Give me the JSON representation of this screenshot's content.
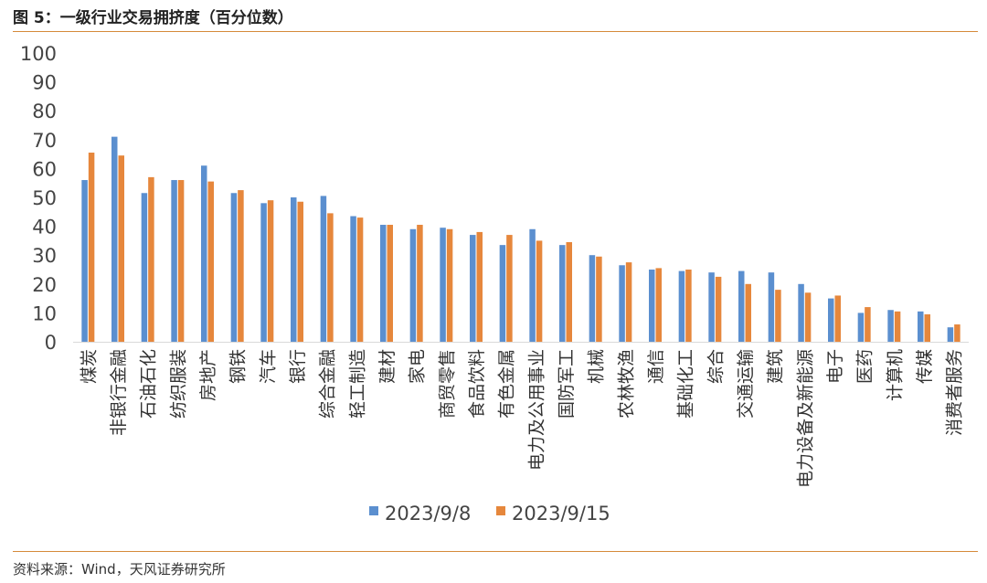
{
  "figure_title": "图 5：一级行业交易拥挤度（百分位数）",
  "source_note": "资料来源：Wind，天风证券研究所",
  "chart_data": {
    "type": "bar",
    "title": "",
    "xlabel": "",
    "ylabel": "",
    "ylim": [
      0,
      100
    ],
    "yticks": [
      0,
      10,
      20,
      30,
      40,
      50,
      60,
      70,
      80,
      90,
      100
    ],
    "grid": false,
    "legend_position": "bottom",
    "categories": [
      "煤炭",
      "非银行金融",
      "石油石化",
      "纺织服装",
      "房地产",
      "钢铁",
      "汽车",
      "银行",
      "综合金融",
      "轻工制造",
      "建材",
      "家电",
      "商贸零售",
      "食品饮料",
      "有色金属",
      "电力及公用事业",
      "国防军工",
      "机械",
      "农林牧渔",
      "通信",
      "基础化工",
      "综合",
      "交通运输",
      "建筑",
      "电力设备及新能源",
      "电子",
      "医药",
      "计算机",
      "传媒",
      "消费者服务"
    ],
    "series": [
      {
        "name": "2023/9/8",
        "color": "#5b8fcf",
        "values": [
          56,
          71,
          51.5,
          56,
          61,
          51.5,
          48,
          50,
          50.5,
          43.5,
          40.5,
          39,
          39.5,
          37,
          33.5,
          39,
          33.5,
          30,
          26.5,
          25,
          24.5,
          24,
          24.5,
          24,
          20,
          15,
          10,
          11,
          10.5,
          5
        ]
      },
      {
        "name": "2023/9/15",
        "color": "#e6873c",
        "values": [
          65.5,
          64.5,
          57,
          56,
          55.5,
          52.5,
          49,
          48.5,
          44.5,
          43,
          40.5,
          40.5,
          39,
          38,
          37,
          35,
          34.5,
          29.5,
          27.5,
          25.5,
          25,
          22.5,
          20,
          18,
          17,
          16,
          12,
          10.5,
          9.5,
          6
        ]
      }
    ]
  }
}
